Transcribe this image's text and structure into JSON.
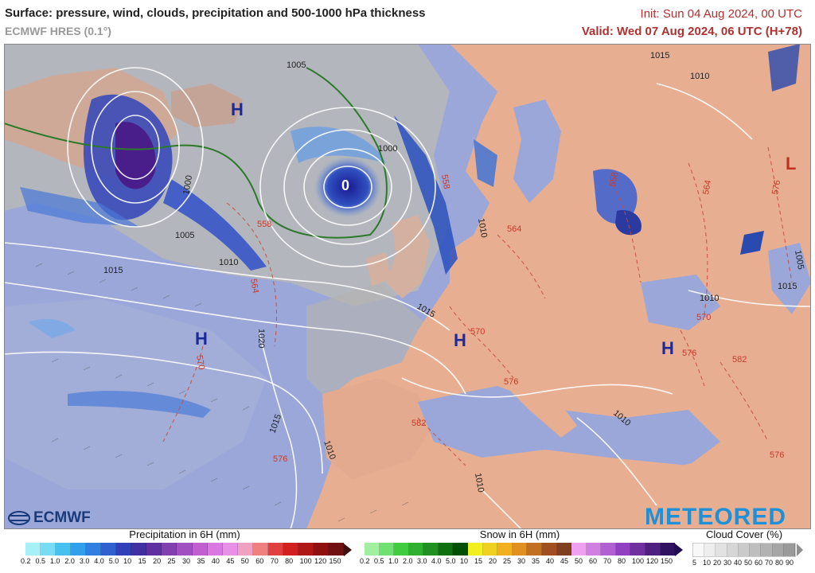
{
  "header": {
    "title": "Surface: pressure, wind, clouds, precipitation and 500-1000 hPa thickness",
    "model": "ECMWF HRES (0.1°)",
    "init": "Init: Sun 04 Aug 2024, 00 UTC",
    "valid": "Valid: Wed 07 Aug 2024, 06 UTC (H+78)"
  },
  "map": {
    "pressure_centers": [
      {
        "label": "H",
        "type": "high",
        "color": "#1a2a9a"
      },
      {
        "label": "H",
        "type": "high",
        "color": "#1a2a9a"
      },
      {
        "label": "H",
        "type": "high",
        "color": "#1a2a9a"
      },
      {
        "label": "H",
        "type": "high",
        "color": "#1a2a9a"
      },
      {
        "label": "L",
        "type": "low",
        "color": "#c03020"
      }
    ],
    "isobar_labels": [
      "1015",
      "1010",
      "1005",
      "1000",
      "1000",
      "1005",
      "1010",
      "1015",
      "1020",
      "1015",
      "1010",
      "1010",
      "1010",
      "1015",
      "1010",
      "1005",
      "1010",
      "1015"
    ],
    "thickness_labels": [
      "558",
      "564",
      "570",
      "576",
      "582",
      "558",
      "564",
      "570",
      "576",
      "576",
      "570",
      "576",
      "582",
      "564",
      "576",
      "558"
    ],
    "low_center_label": "0"
  },
  "legends": {
    "precipitation": {
      "title": "Precipitation in 6H (mm)",
      "ticks": [
        "0.2",
        "0.5",
        "1.0",
        "2.0",
        "3.0",
        "4.0",
        "5.0",
        "10",
        "15",
        "20",
        "25",
        "30",
        "35",
        "40",
        "45",
        "50",
        "60",
        "70",
        "80",
        "100",
        "120",
        "150"
      ],
      "colors": [
        "#a8f0f8",
        "#78dcf4",
        "#48c0f0",
        "#30a0ec",
        "#3080e0",
        "#3060d0",
        "#3040b8",
        "#4030a0",
        "#6030a0",
        "#8040b0",
        "#a050c0",
        "#c060d0",
        "#d878e0",
        "#e890e8",
        "#f0a0c0",
        "#f08080",
        "#e04040",
        "#d02020",
        "#b01818",
        "#901010",
        "#701010"
      ]
    },
    "snow": {
      "title": "Snow in 6H (mm)",
      "ticks": [
        "0.2",
        "0.5",
        "1.0",
        "2.0",
        "3.0",
        "4.0",
        "5.0",
        "10",
        "15",
        "20",
        "25",
        "30",
        "35",
        "40",
        "45",
        "50",
        "60",
        "70",
        "80",
        "100",
        "120",
        "150"
      ],
      "colors": [
        "#a0f0a0",
        "#70e070",
        "#40cc40",
        "#30b030",
        "#209020",
        "#107010",
        "#005000",
        "#f0f020",
        "#f0d020",
        "#f0b020",
        "#e09020",
        "#c07020",
        "#a05020",
        "#804020",
        "#f0a0f0",
        "#d080e0",
        "#b060d0",
        "#9040c0",
        "#7030a0",
        "#502080",
        "#301060"
      ]
    },
    "cloud": {
      "title": "Cloud Cover (%)",
      "ticks": [
        "5",
        "10",
        "20",
        "30",
        "40",
        "50",
        "60",
        "70",
        "80",
        "90"
      ],
      "colors": [
        "#f8f8f8",
        "#eeeeee",
        "#e2e2e2",
        "#d6d6d6",
        "#cacaca",
        "#bebebe",
        "#b2b2b2",
        "#a6a6a6",
        "#9a9a9a"
      ]
    }
  },
  "logos": {
    "ecmwf": "ECMWF",
    "meteored": "METEORED"
  }
}
